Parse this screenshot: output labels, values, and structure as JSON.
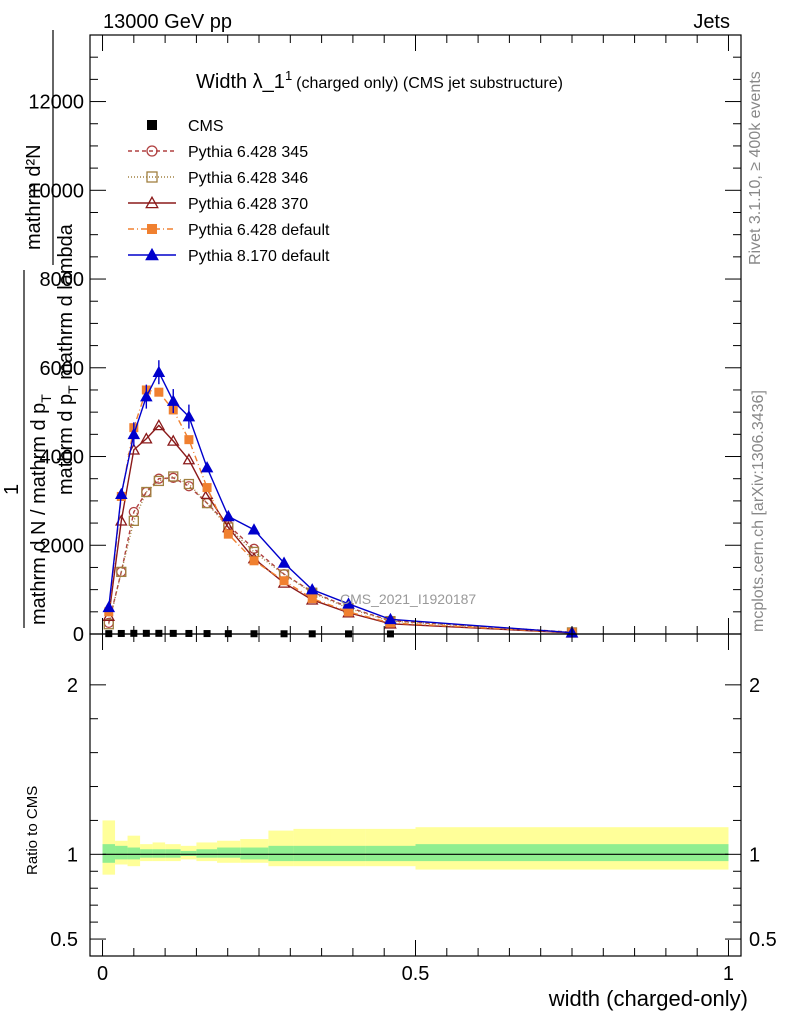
{
  "header": {
    "left": "13000 GeV pp",
    "right": "Jets"
  },
  "side_labels": {
    "rivet": "Rivet 3.1.10, ≥ 400k events",
    "mcplots": "mcplots.cern.ch [arXiv:1306.3436]"
  },
  "watermark": "CMS_2021_I1920187",
  "title": {
    "main": "Width λ_1",
    "sup": "1",
    "sub": "(charged only) (CMS jet substructure)"
  },
  "ylabel_main": {
    "numerator": "mathrm d²N",
    "denominator": "mathrm d p",
    "denominator_sub": "T",
    "denominator_tail": " mathrm d lambda",
    "prefix_num": "1",
    "prefix_den": "mathrm d N / mathrm d p",
    "prefix_den_sub": "T"
  },
  "ylabel_ratio": "Ratio to CMS",
  "xlabel": "width (charged-only)",
  "colors": {
    "cms": "#000000",
    "p345": "#b04040",
    "p346": "#a08040",
    "p370": "#8b1a1a",
    "pdef": "#f08030",
    "p8": "#0000cc",
    "band_inner": "#90ee90",
    "band_outer": "#ffff99"
  },
  "chart_data": [
    {
      "type": "line",
      "panel": "main",
      "xlim": [
        -0.02,
        1.02
      ],
      "ylim": [
        0,
        13500
      ],
      "yticks": [
        0,
        2000,
        4000,
        6000,
        8000,
        10000,
        12000
      ],
      "ytick_labels": [
        "0",
        "2000",
        "4000",
        "6000",
        "8000",
        "10000",
        "12000"
      ],
      "legend_position": "top-left",
      "series": [
        {
          "name": "CMS",
          "key": "cms",
          "marker": "square-filled",
          "x": [
            0.01,
            0.03,
            0.05,
            0.07,
            0.09,
            0.113,
            0.138,
            0.167,
            0.201,
            0.242,
            0.29,
            0.335,
            0.393,
            0.46,
            0.75
          ],
          "y": [
            8,
            12,
            15,
            15,
            15,
            14,
            12,
            10,
            8,
            6,
            5,
            4,
            3,
            2,
            0
          ]
        },
        {
          "name": "Pythia 6.428 345",
          "key": "p345",
          "marker": "circle-open",
          "dash": "4,3",
          "x": [
            0.01,
            0.03,
            0.05,
            0.07,
            0.09,
            0.113,
            0.138,
            0.167,
            0.201,
            0.242,
            0.29,
            0.335,
            0.393,
            0.46,
            0.75
          ],
          "y": [
            250,
            1400,
            2750,
            3200,
            3500,
            3520,
            3330,
            2950,
            2450,
            1920,
            1350,
            950,
            600,
            300,
            40
          ]
        },
        {
          "name": "Pythia 6.428 346",
          "key": "p346",
          "marker": "square-open",
          "dash": "1,2",
          "x": [
            0.01,
            0.03,
            0.05,
            0.07,
            0.09,
            0.113,
            0.138,
            0.167,
            0.201,
            0.242,
            0.29,
            0.335,
            0.393,
            0.46,
            0.75
          ],
          "y": [
            220,
            1400,
            2550,
            3200,
            3450,
            3550,
            3380,
            2950,
            2400,
            1850,
            1340,
            930,
            580,
            290,
            35
          ]
        },
        {
          "name": "Pythia 6.428 370",
          "key": "p370",
          "marker": "triangle-open",
          "dash": "",
          "x": [
            0.01,
            0.03,
            0.05,
            0.07,
            0.09,
            0.113,
            0.138,
            0.167,
            0.201,
            0.242,
            0.29,
            0.335,
            0.393,
            0.46,
            0.75
          ],
          "y": [
            400,
            2550,
            4150,
            4400,
            4700,
            4350,
            3930,
            3150,
            2400,
            1700,
            1150,
            770,
            480,
            230,
            25
          ]
        },
        {
          "name": "Pythia 6.428 default",
          "key": "pdef",
          "marker": "square-filled",
          "dash": "6,3,1,3",
          "x": [
            0.01,
            0.03,
            0.05,
            0.07,
            0.09,
            0.113,
            0.138,
            0.167,
            0.201,
            0.242,
            0.29,
            0.335,
            0.393,
            0.46,
            0.75
          ],
          "y": [
            500,
            3100,
            4650,
            5500,
            5450,
            5050,
            4380,
            3300,
            2250,
            1650,
            1200,
            800,
            500,
            250,
            30
          ]
        },
        {
          "name": "Pythia 8.170 default",
          "key": "p8",
          "marker": "triangle-filled",
          "dash": "",
          "x": [
            0.01,
            0.03,
            0.05,
            0.07,
            0.09,
            0.113,
            0.138,
            0.167,
            0.201,
            0.242,
            0.29,
            0.335,
            0.393,
            0.46,
            0.75
          ],
          "y": [
            600,
            3150,
            4500,
            5350,
            5900,
            5250,
            4900,
            3750,
            2650,
            2350,
            1600,
            1000,
            680,
            330,
            30
          ]
        }
      ]
    },
    {
      "type": "area",
      "panel": "ratio",
      "xlim": [
        -0.02,
        1.02
      ],
      "ylim": [
        0.4,
        2.3
      ],
      "yticks": [
        0.5,
        1,
        2
      ],
      "ytick_labels": [
        "0.5",
        "1",
        "2"
      ],
      "xticks": [
        0,
        0.5,
        1
      ],
      "xtick_labels": [
        "0",
        "0.5",
        "1"
      ],
      "bins": [
        0,
        0.02,
        0.04,
        0.06,
        0.08,
        0.1,
        0.125,
        0.15,
        0.183,
        0.22,
        0.265,
        0.305,
        0.365,
        0.42,
        0.5,
        1.0
      ],
      "inner_band": [
        [
          0.95,
          1.06
        ],
        [
          0.97,
          1.05
        ],
        [
          0.97,
          1.04
        ],
        [
          0.98,
          1.03
        ],
        [
          0.98,
          1.03
        ],
        [
          0.98,
          1.03
        ],
        [
          0.99,
          1.02
        ],
        [
          0.98,
          1.03
        ],
        [
          0.98,
          1.04
        ],
        [
          0.97,
          1.04
        ],
        [
          0.96,
          1.05
        ],
        [
          0.96,
          1.05
        ],
        [
          0.96,
          1.05
        ],
        [
          0.96,
          1.05
        ],
        [
          0.96,
          1.06
        ]
      ],
      "outer_band": [
        [
          0.88,
          1.2
        ],
        [
          0.94,
          1.08
        ],
        [
          0.93,
          1.11
        ],
        [
          0.96,
          1.06
        ],
        [
          0.96,
          1.07
        ],
        [
          0.96,
          1.06
        ],
        [
          0.97,
          1.05
        ],
        [
          0.96,
          1.07
        ],
        [
          0.95,
          1.08
        ],
        [
          0.95,
          1.09
        ],
        [
          0.93,
          1.14
        ],
        [
          0.93,
          1.15
        ],
        [
          0.93,
          1.15
        ],
        [
          0.93,
          1.15
        ],
        [
          0.91,
          1.16
        ]
      ]
    }
  ]
}
